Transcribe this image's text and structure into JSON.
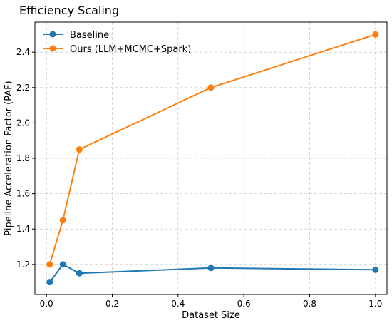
{
  "chart_data": {
    "type": "line",
    "title": "Efficiency Scaling",
    "xlabel": "Dataset Size",
    "ylabel": "Pipeline Acceleration Factor (PAF)",
    "x": [
      0.01,
      0.05,
      0.1,
      0.5,
      1.0
    ],
    "xlim": [
      -0.035,
      1.035
    ],
    "ylim": [
      1.03,
      2.57
    ],
    "xticks": [
      0.0,
      0.2,
      0.4,
      0.6,
      0.8,
      1.0
    ],
    "xtick_labels": [
      "0.0",
      "0.2",
      "0.4",
      "0.6",
      "0.8",
      "1.0"
    ],
    "yticks": [
      1.2,
      1.4,
      1.6,
      1.8,
      2.0,
      2.2,
      2.4
    ],
    "ytick_labels": [
      "1.2",
      "1.4",
      "1.6",
      "1.8",
      "2.0",
      "2.2",
      "2.4"
    ],
    "grid": true,
    "legend_position": "upper-left",
    "series": [
      {
        "name": "Baseline",
        "color": "#1f77b4",
        "values": [
          1.1,
          1.2,
          1.15,
          1.18,
          1.17
        ]
      },
      {
        "name": "Ours (LLM+MCMC+Spark)",
        "color": "#ff7f0e",
        "values": [
          1.2,
          1.45,
          1.85,
          2.2,
          2.5
        ]
      }
    ]
  }
}
